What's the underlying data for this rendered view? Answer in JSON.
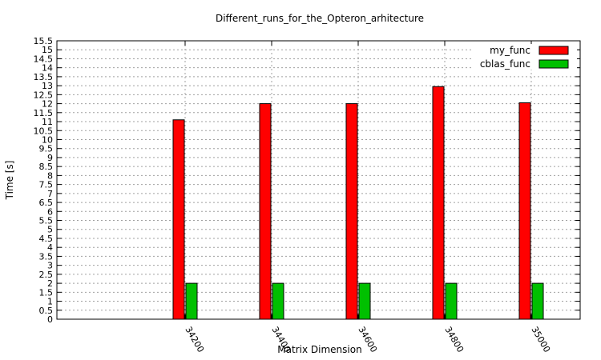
{
  "chart_data": {
    "type": "bar",
    "title": "Different_runs_for_the_Opteron_arhitecture",
    "xlabel": "Matrix Dimension",
    "ylabel": "Time [s]",
    "categories": [
      "34200",
      "34400",
      "34600",
      "34800",
      "35000"
    ],
    "series": [
      {
        "name": "my_func",
        "color": "#ff0000",
        "values": [
          11.1,
          12.0,
          12.0,
          12.95,
          12.05
        ]
      },
      {
        "name": "cblas_func",
        "color": "#00c000",
        "values": [
          2.0,
          2.0,
          2.0,
          2.0,
          2.0
        ]
      }
    ],
    "ylim": [
      0,
      15.5
    ],
    "yticks": [
      "0",
      "0.5",
      "1",
      "1.5",
      "2",
      "2.5",
      "3",
      "3.5",
      "4",
      "4.5",
      "5",
      "5.5",
      "6",
      "6.5",
      "7",
      "7.5",
      "8",
      "8.5",
      "9",
      "9.5",
      "10",
      "10.5",
      "11",
      "11.5",
      "12",
      "12.5",
      "13",
      "13.5",
      "14",
      "14.5",
      "15",
      "15.5"
    ],
    "grid": true,
    "legend_position": "top-right"
  }
}
